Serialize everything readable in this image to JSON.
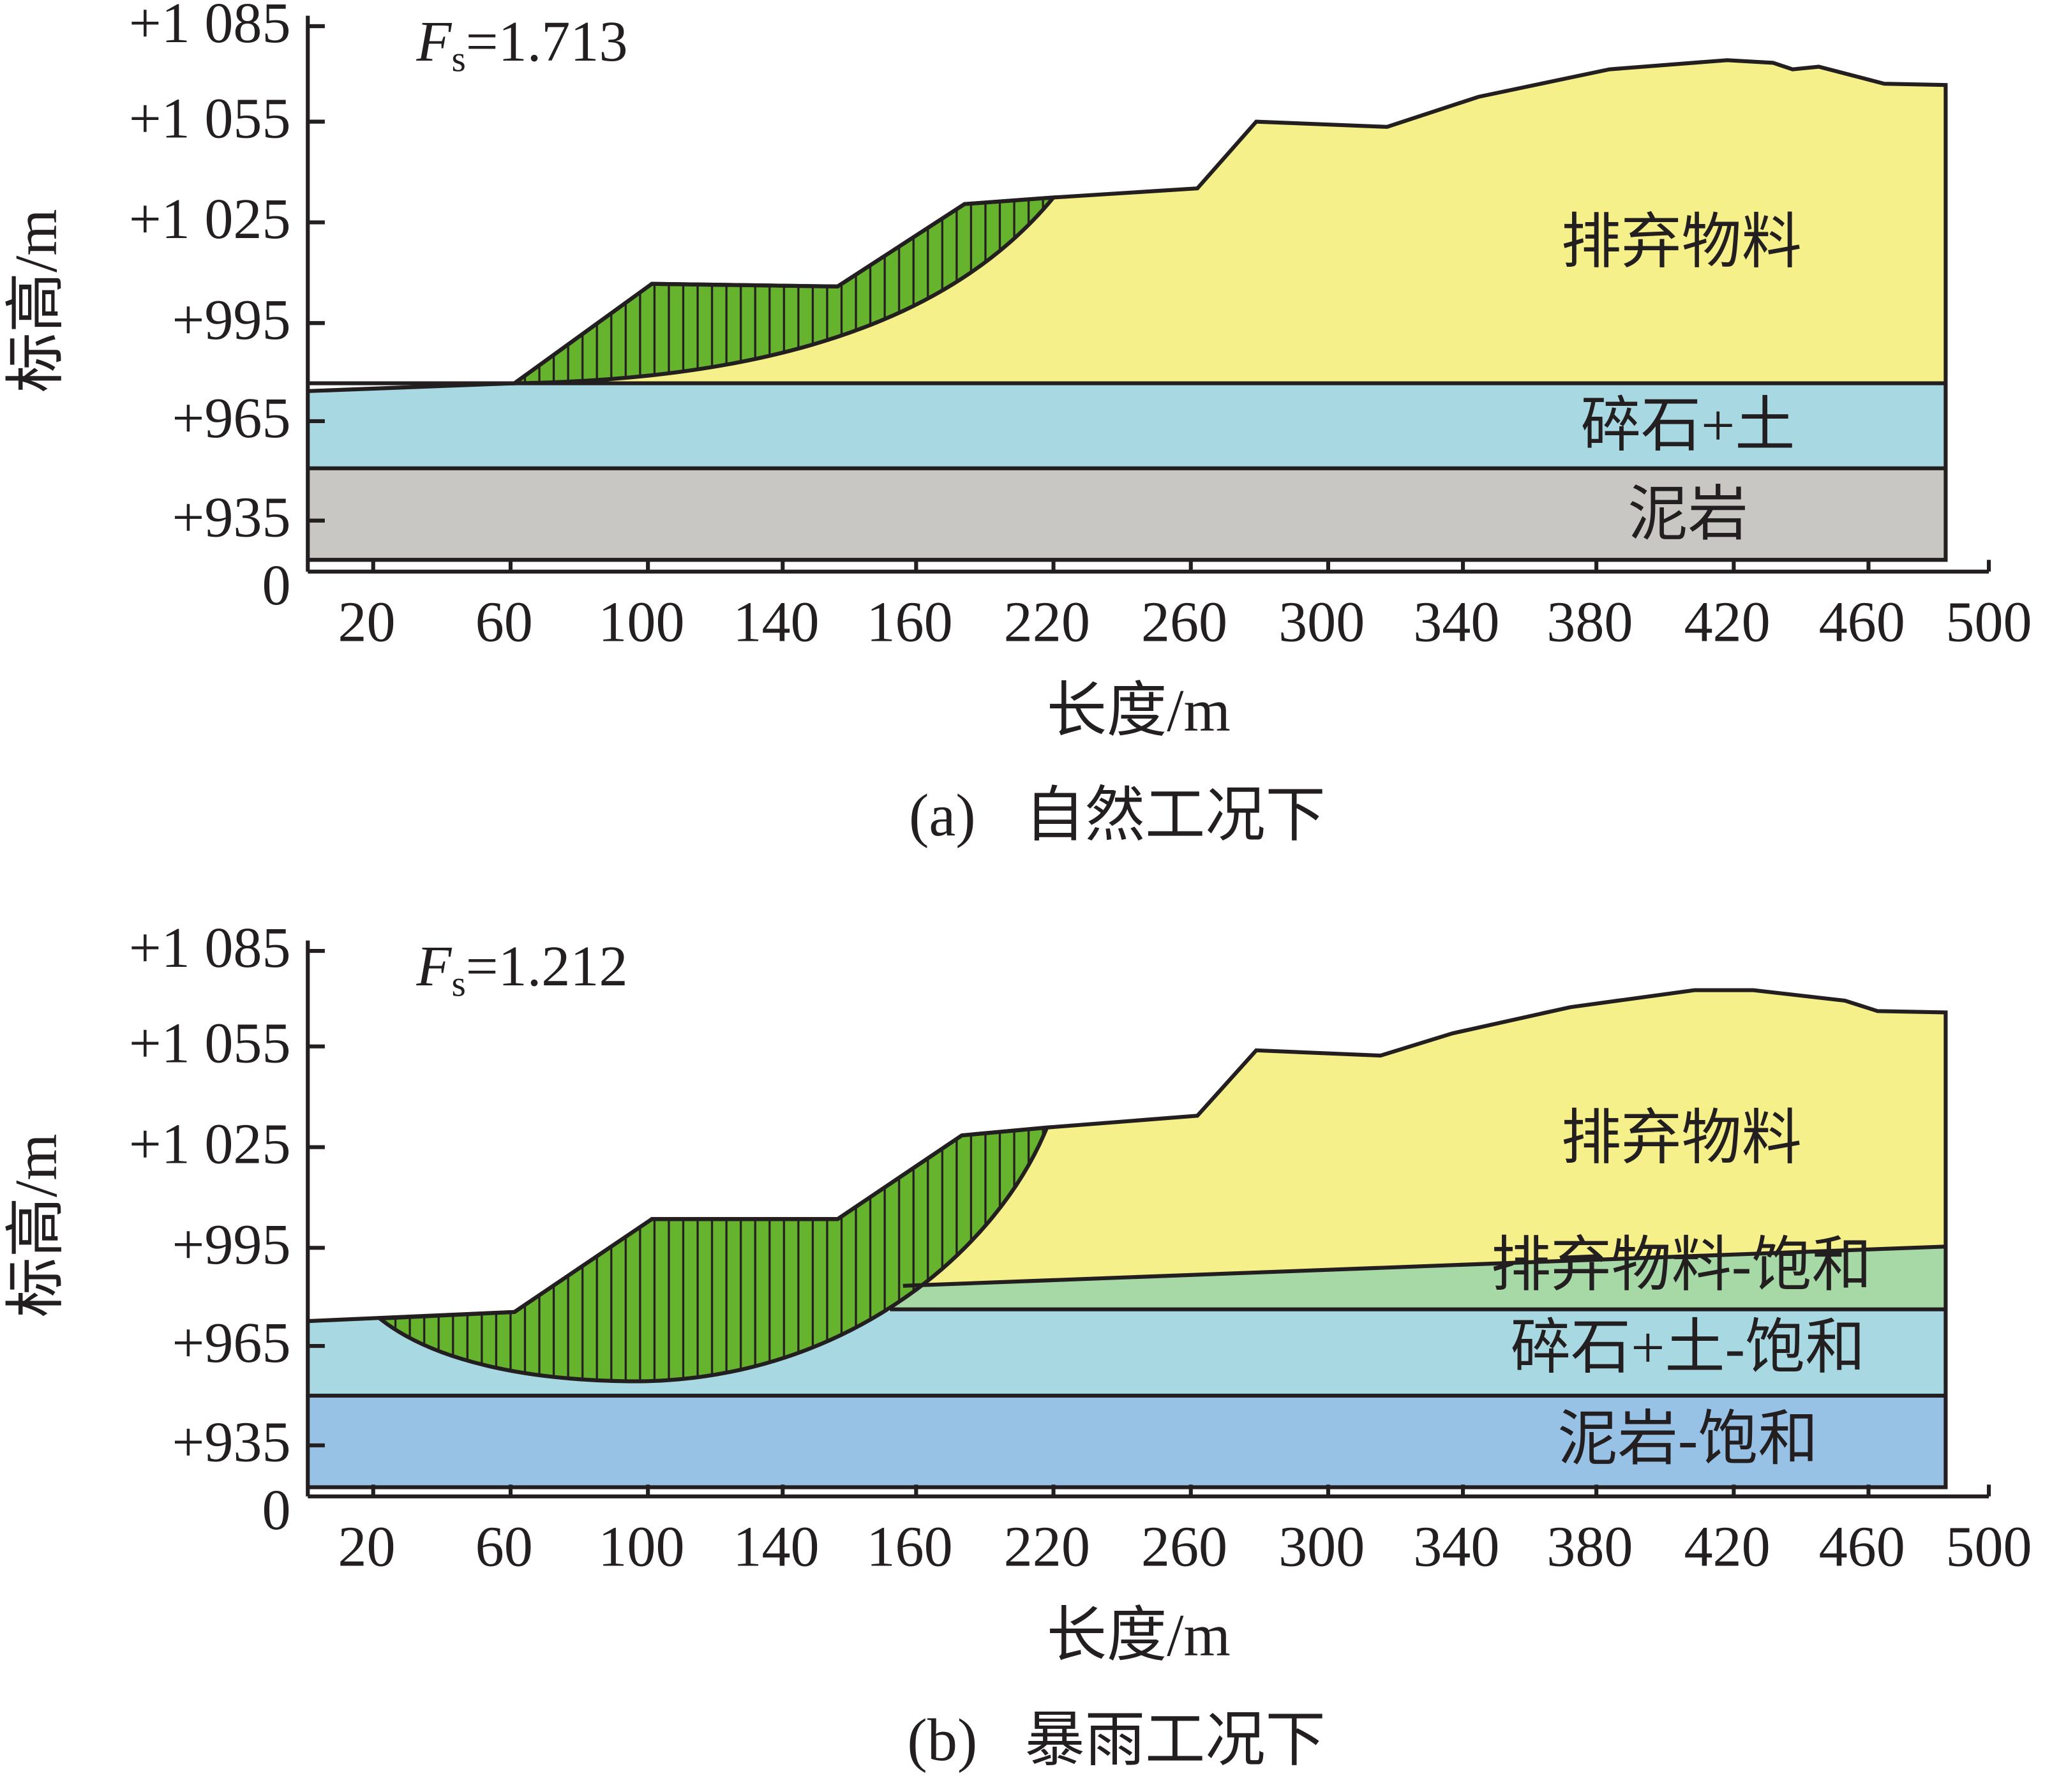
{
  "panels": [
    {
      "fs_symbol": "F",
      "fs_sub": "s",
      "fs_value": "=1.713",
      "y_axis_label": "标高/m",
      "x_axis_label": "长度/m",
      "y_ticks": [
        "+1 085",
        "+1 055",
        "+1 025",
        "+995",
        "+965",
        "+935",
        "0"
      ],
      "x_ticks": [
        20,
        60,
        100,
        140,
        160,
        220,
        260,
        300,
        340,
        380,
        420,
        460,
        500
      ],
      "layers": [
        "排弃物料",
        "碎石+土",
        "泥岩"
      ],
      "caption_tag": "(a)",
      "caption": "自然工况下"
    },
    {
      "fs_symbol": "F",
      "fs_sub": "s",
      "fs_value": "=1.212",
      "y_axis_label": "标高/m",
      "x_axis_label": "长度/m",
      "y_ticks": [
        "+1 085",
        "+1 055",
        "+1 025",
        "+995",
        "+965",
        "+935",
        "0"
      ],
      "x_ticks": [
        20,
        60,
        100,
        140,
        160,
        220,
        260,
        300,
        340,
        380,
        420,
        460,
        500
      ],
      "layers": [
        "排弃物料",
        "排弃物料-饱和",
        "碎石+土-饱和",
        "泥岩-饱和"
      ],
      "caption_tag": "(b)",
      "caption": "暴雨工况下"
    }
  ]
}
